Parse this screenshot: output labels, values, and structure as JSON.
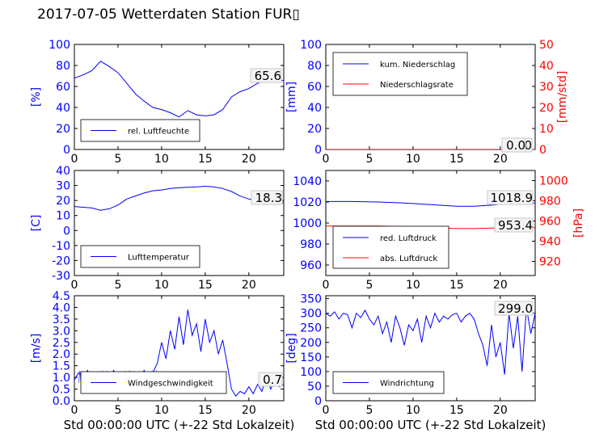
{
  "figure": {
    "title": "2017-07-05 Wetterdaten Station FUR▯",
    "xlabel": "Std 00:00:00 UTC (+-22 Std Lokalzeit)"
  },
  "colors": {
    "primary": "#0000ff",
    "secondary": "#ff0000",
    "wind_band": "#7777ff"
  },
  "chart_data": [
    {
      "id": "humidity",
      "type": "line",
      "ylabel": "[%]",
      "xlim": [
        0,
        24
      ],
      "ylim": [
        0,
        100
      ],
      "xticks": [
        0,
        5,
        10,
        15,
        20
      ],
      "yticks": [
        0,
        20,
        40,
        60,
        80,
        100
      ],
      "value_label": "65.6",
      "legend": {
        "position": "lower-left",
        "entries": [
          "rel. Luftfeuchte"
        ]
      },
      "series": [
        {
          "name": "rel. Luftfeuchte",
          "color": "#0000ff",
          "x": [
            0,
            1,
            2,
            3,
            4,
            5,
            6,
            7,
            8,
            9,
            10,
            11,
            12,
            13,
            14,
            15,
            16,
            17,
            18,
            19,
            20,
            21,
            22,
            23,
            24
          ],
          "y": [
            68,
            71,
            75,
            84,
            79,
            73,
            63,
            53,
            46,
            40,
            38,
            35,
            31,
            37,
            33,
            32,
            33,
            38,
            50,
            55,
            58,
            63,
            66,
            65,
            66
          ]
        }
      ]
    },
    {
      "id": "precip",
      "type": "line",
      "ylabel": "[mm]",
      "ylabel2": "[mm/std]",
      "xlim": [
        0,
        24
      ],
      "ylim": [
        0,
        100
      ],
      "ylim2": [
        0,
        50
      ],
      "xticks": [
        0,
        5,
        10,
        15,
        20
      ],
      "yticks": [
        0,
        20,
        40,
        60,
        80,
        100
      ],
      "yticks2": [
        0,
        10,
        20,
        30,
        40,
        50
      ],
      "value_label": "0.0",
      "value_label2": "0.0",
      "legend": {
        "position": "upper-left",
        "entries": [
          "kum. Niederschlag",
          "Niederschlagsrate"
        ]
      },
      "series": [
        {
          "name": "kum. Niederschlag",
          "color": "#0000ff",
          "axis": "left",
          "x": [
            0,
            24
          ],
          "y": [
            0,
            0
          ]
        },
        {
          "name": "Niederschlagsrate",
          "color": "#ff0000",
          "axis": "right",
          "x": [
            0,
            24
          ],
          "y": [
            0,
            0
          ]
        }
      ]
    },
    {
      "id": "temperature",
      "type": "line",
      "ylabel": "[C]",
      "xlim": [
        0,
        24
      ],
      "ylim": [
        -30,
        40
      ],
      "xticks": [
        0,
        5,
        10,
        15,
        20
      ],
      "yticks": [
        -30,
        -20,
        -10,
        0,
        10,
        20,
        30,
        40
      ],
      "value_label": "18.3",
      "legend": {
        "position": "lower-left",
        "entries": [
          "Lufttemperatur"
        ]
      },
      "series": [
        {
          "name": "Lufttemperatur",
          "color": "#0000ff",
          "x": [
            0,
            1,
            2,
            3,
            4,
            5,
            6,
            7,
            8,
            9,
            10,
            11,
            12,
            13,
            14,
            15,
            16,
            17,
            18,
            19,
            20,
            21,
            22,
            23,
            24
          ],
          "y": [
            16,
            15.5,
            15,
            13.5,
            14.5,
            17,
            21,
            23,
            25,
            26.5,
            27,
            28,
            28.5,
            28.8,
            29,
            29.5,
            29,
            28,
            26,
            23,
            21,
            20,
            19,
            18.3,
            18.5
          ]
        }
      ]
    },
    {
      "id": "pressure",
      "type": "line",
      "ylabel2": "[hPa]",
      "xlim": [
        0,
        24
      ],
      "ylim": [
        950,
        1050
      ],
      "ylim2": [
        906,
        1010
      ],
      "xticks": [
        0,
        5,
        10,
        15,
        20
      ],
      "yticks": [
        960,
        980,
        1000,
        1020,
        1040
      ],
      "yticks2": [
        920,
        940,
        960,
        980,
        1000
      ],
      "value_label": "1018.9",
      "value_label2": "953.4",
      "legend": {
        "position": "lower-left",
        "entries": [
          "red. Luftdruck",
          "abs. Luftdruck"
        ]
      },
      "series": [
        {
          "name": "red. Luftdruck",
          "color": "#0000ff",
          "axis": "left",
          "x": [
            0,
            3,
            6,
            9,
            12,
            15,
            17,
            19,
            21,
            24
          ],
          "y": [
            1020.5,
            1020.5,
            1020,
            1019,
            1017.5,
            1016,
            1016,
            1017,
            1018.5,
            1019
          ]
        },
        {
          "name": "abs. Luftdruck",
          "color": "#ff0000",
          "axis": "right",
          "x": [
            0,
            3,
            6,
            9,
            12,
            15,
            17,
            19,
            21,
            24
          ],
          "y": [
            955,
            955,
            955,
            954.5,
            953.5,
            952.5,
            952.5,
            953,
            953.5,
            953.5
          ]
        }
      ]
    },
    {
      "id": "windspeed",
      "type": "line",
      "ylabel": "[m/s]",
      "xlim": [
        0,
        24
      ],
      "ylim": [
        0,
        4.5
      ],
      "xticks": [
        0,
        5,
        10,
        15,
        20
      ],
      "yticks": [
        0.0,
        0.5,
        1.0,
        1.5,
        2.0,
        2.5,
        3.0,
        3.5,
        4.0,
        4.5
      ],
      "value_label": "0.7",
      "legend": {
        "position": "lower-left",
        "entries": [
          "Windgeschwindigkeit"
        ]
      },
      "series": [
        {
          "name": "Windgeschwindigkeit",
          "color": "#0000ff",
          "x": [
            0,
            0.5,
            1,
            1.5,
            2,
            2.5,
            3,
            3.5,
            4,
            4.5,
            5,
            5.5,
            6,
            6.5,
            7,
            7.5,
            8,
            8.5,
            9,
            9.5,
            10,
            10.5,
            11,
            11.5,
            12,
            12.5,
            13,
            13.5,
            14,
            14.5,
            15,
            15.5,
            16,
            16.5,
            17,
            17.5,
            18,
            18.5,
            19,
            19.5,
            20,
            20.5,
            21,
            21.5,
            22,
            22.5,
            23,
            23.5,
            24
          ],
          "y": [
            0.9,
            1.2,
            1.0,
            1.3,
            0.9,
            1.1,
            1.2,
            0.8,
            1.0,
            1.3,
            0.9,
            1.1,
            0.8,
            1.2,
            0.9,
            1.0,
            1.3,
            0.9,
            1.2,
            1.6,
            2.5,
            1.8,
            3.0,
            2.2,
            3.6,
            2.4,
            3.9,
            2.8,
            3.3,
            2.1,
            3.5,
            2.5,
            3.0,
            2.0,
            2.6,
            1.6,
            0.5,
            0.2,
            0.4,
            0.3,
            0.6,
            0.3,
            0.7,
            0.4,
            1.0,
            0.5,
            0.9,
            0.6,
            0.7
          ]
        }
      ]
    },
    {
      "id": "winddir",
      "type": "line",
      "ylabel": "[deg]",
      "xlim": [
        0,
        24
      ],
      "ylim": [
        0,
        360
      ],
      "xticks": [
        0,
        5,
        10,
        15,
        20
      ],
      "yticks": [
        0,
        50,
        100,
        150,
        200,
        250,
        300,
        350
      ],
      "value_label": "299.0",
      "legend": {
        "position": "lower-left",
        "entries": [
          "Windrichtung"
        ]
      },
      "series": [
        {
          "name": "Windrichtung",
          "color": "#0000ff",
          "x": [
            0,
            0.5,
            1,
            1.5,
            2,
            2.5,
            3,
            3.5,
            4,
            4.5,
            5,
            5.5,
            6,
            6.5,
            7,
            7.5,
            8,
            8.5,
            9,
            9.5,
            10,
            10.5,
            11,
            11.5,
            12,
            12.5,
            13,
            13.5,
            14,
            14.5,
            15,
            15.5,
            16,
            16.5,
            17,
            17.5,
            18,
            18.5,
            19,
            19.5,
            20,
            20.5,
            21,
            21.5,
            22,
            22.5,
            23,
            23.5,
            24
          ],
          "y": [
            300,
            290,
            305,
            280,
            300,
            295,
            250,
            300,
            285,
            310,
            280,
            260,
            290,
            230,
            270,
            200,
            290,
            250,
            190,
            260,
            240,
            280,
            200,
            290,
            250,
            300,
            270,
            290,
            280,
            295,
            300,
            270,
            290,
            300,
            280,
            230,
            190,
            120,
            260,
            150,
            200,
            90,
            300,
            180,
            290,
            100,
            320,
            230,
            300
          ]
        }
      ]
    }
  ]
}
